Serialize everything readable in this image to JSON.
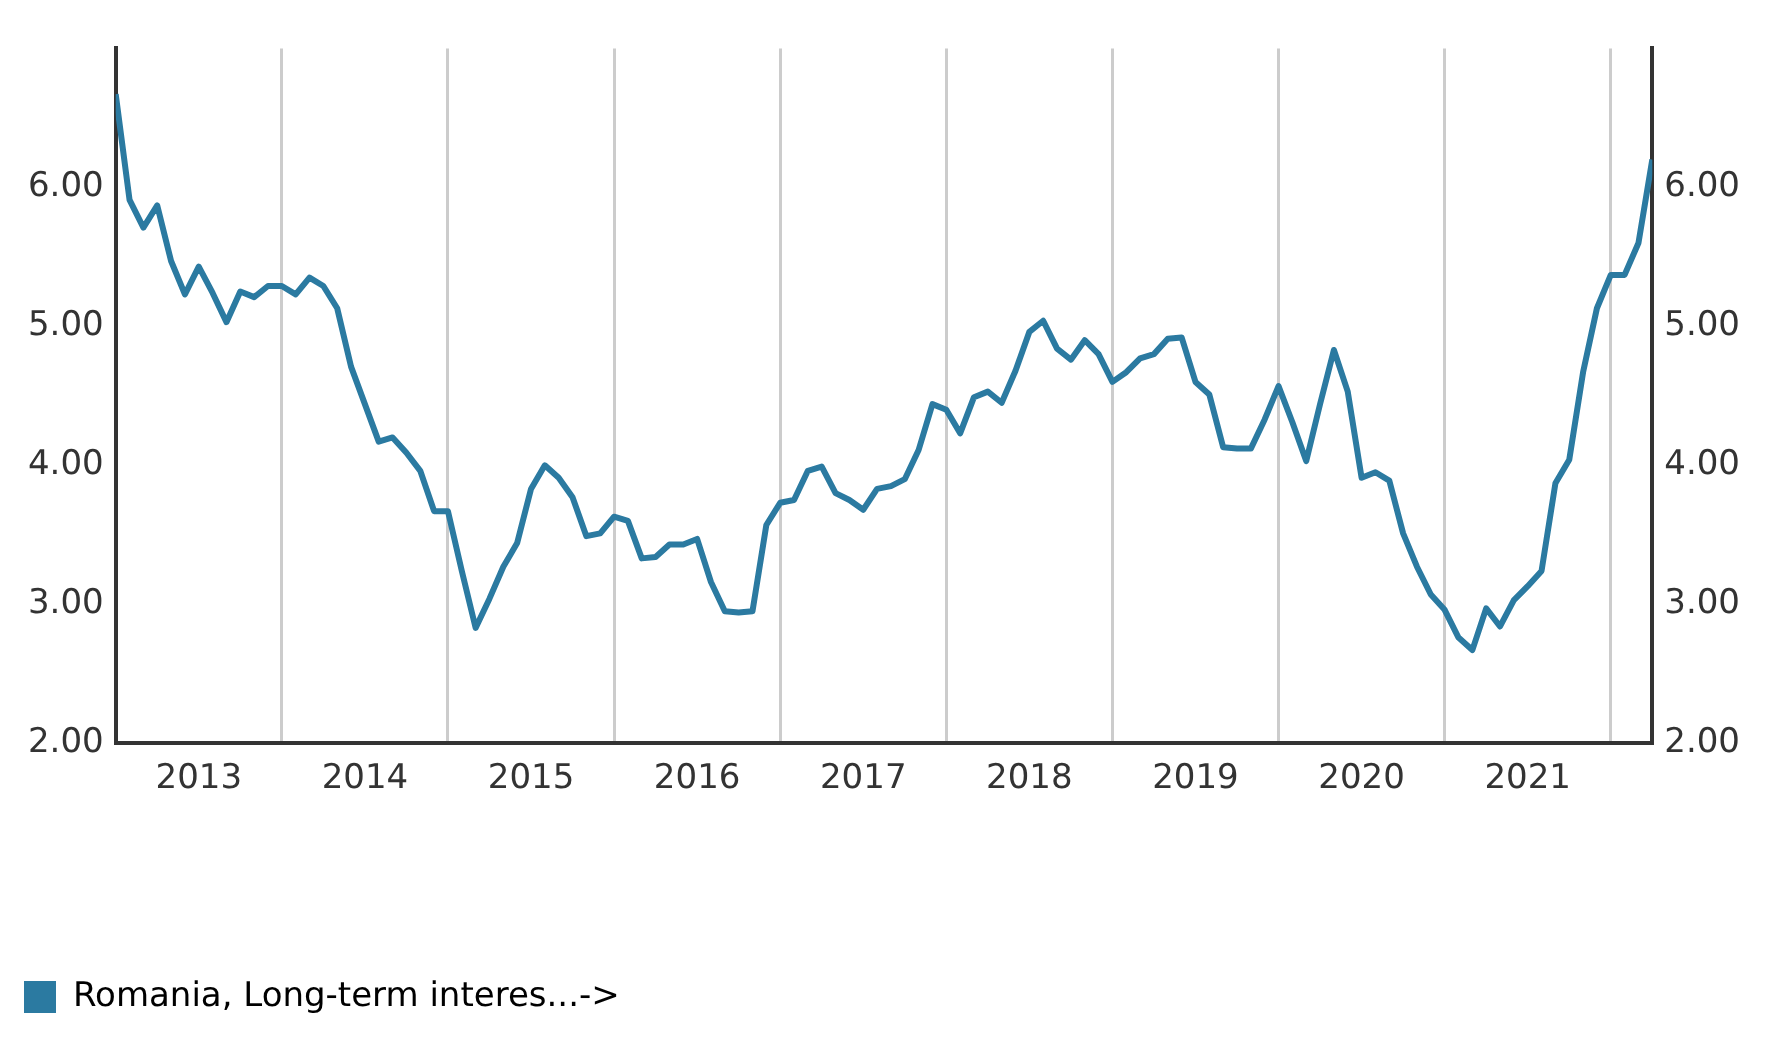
{
  "chart_data": {
    "type": "line",
    "x": [
      "2013-01",
      "2013-02",
      "2013-03",
      "2013-04",
      "2013-05",
      "2013-06",
      "2013-07",
      "2013-08",
      "2013-09",
      "2013-10",
      "2013-11",
      "2013-12",
      "2014-01",
      "2014-02",
      "2014-03",
      "2014-04",
      "2014-05",
      "2014-06",
      "2014-07",
      "2014-08",
      "2014-09",
      "2014-10",
      "2014-11",
      "2014-12",
      "2015-01",
      "2015-02",
      "2015-03",
      "2015-04",
      "2015-05",
      "2015-06",
      "2015-07",
      "2015-08",
      "2015-09",
      "2015-10",
      "2015-11",
      "2015-12",
      "2016-01",
      "2016-02",
      "2016-03",
      "2016-04",
      "2016-05",
      "2016-06",
      "2016-07",
      "2016-08",
      "2016-09",
      "2016-10",
      "2016-11",
      "2016-12",
      "2017-01",
      "2017-02",
      "2017-03",
      "2017-04",
      "2017-05",
      "2017-06",
      "2017-07",
      "2017-08",
      "2017-09",
      "2017-10",
      "2017-11",
      "2017-12",
      "2018-01",
      "2018-02",
      "2018-03",
      "2018-04",
      "2018-05",
      "2018-06",
      "2018-07",
      "2018-08",
      "2018-09",
      "2018-10",
      "2018-11",
      "2018-12",
      "2019-01",
      "2019-02",
      "2019-03",
      "2019-04",
      "2019-05",
      "2019-06",
      "2019-07",
      "2019-08",
      "2019-09",
      "2019-10",
      "2019-11",
      "2019-12",
      "2020-01",
      "2020-02",
      "2020-03",
      "2020-04",
      "2020-05",
      "2020-06",
      "2020-07",
      "2020-08",
      "2020-09",
      "2020-10",
      "2020-11",
      "2020-12",
      "2021-01",
      "2021-02",
      "2021-03",
      "2021-04",
      "2021-05",
      "2021-06",
      "2021-07",
      "2021-08",
      "2021-09",
      "2021-10",
      "2021-11",
      "2021-12",
      "2022-01",
      "2022-02",
      "2022-03",
      "2022-04"
    ],
    "series": [
      {
        "name": "Romania, Long-term interes...->",
        "color": "#2b7aa1",
        "values": [
          6.67,
          5.91,
          5.71,
          5.87,
          5.47,
          5.23,
          5.43,
          5.24,
          5.03,
          5.25,
          5.21,
          5.29,
          5.29,
          5.23,
          5.35,
          5.29,
          5.13,
          4.71,
          4.44,
          4.17,
          4.2,
          4.09,
          3.96,
          3.67,
          3.67,
          3.24,
          2.83,
          3.04,
          3.27,
          3.44,
          3.83,
          4.0,
          3.91,
          3.77,
          3.49,
          3.51,
          3.63,
          3.6,
          3.33,
          3.34,
          3.43,
          3.43,
          3.47,
          3.16,
          2.95,
          2.94,
          2.95,
          3.57,
          3.73,
          3.75,
          3.96,
          3.99,
          3.8,
          3.75,
          3.68,
          3.83,
          3.85,
          3.9,
          4.11,
          4.44,
          4.4,
          4.23,
          4.49,
          4.53,
          4.45,
          4.68,
          4.96,
          5.04,
          4.84,
          4.76,
          4.9,
          4.8,
          4.6,
          4.67,
          4.77,
          4.8,
          4.91,
          4.92,
          4.6,
          4.51,
          4.13,
          4.12,
          4.12,
          4.33,
          4.57,
          4.31,
          4.03,
          4.44,
          4.83,
          4.53,
          3.91,
          3.95,
          3.89,
          3.51,
          3.27,
          3.07,
          2.96,
          2.76,
          2.67,
          2.97,
          2.84,
          3.03,
          3.13,
          3.24,
          3.87,
          4.04,
          4.67,
          5.13,
          5.37,
          5.37,
          5.6,
          6.2
        ]
      }
    ],
    "xlim": [
      "2013-01",
      "2022-04"
    ],
    "xticks": [
      {
        "value": "2013-07",
        "label": "2013"
      },
      {
        "value": "2014",
        "label": null
      },
      {
        "value": "2014-07",
        "label": "2014"
      },
      {
        "value": "2015",
        "label": null
      },
      {
        "value": "2015-07",
        "label": "2015"
      },
      {
        "value": "2016",
        "label": null
      },
      {
        "value": "2016-07",
        "label": "2016"
      },
      {
        "value": "2017",
        "label": null
      },
      {
        "value": "2017-07",
        "label": "2017"
      },
      {
        "value": "2018",
        "label": null
      },
      {
        "value": "2018-07",
        "label": "2018"
      },
      {
        "value": "2019",
        "label": null
      },
      {
        "value": "2019-07",
        "label": "2019"
      },
      {
        "value": "2020",
        "label": null
      },
      {
        "value": "2020-07",
        "label": "2020"
      },
      {
        "value": "2021",
        "label": null
      },
      {
        "value": "2021-07",
        "label": "2021"
      },
      {
        "value": "2022",
        "label": null
      }
    ],
    "ylim": [
      2,
      7
    ],
    "yticks": [
      {
        "value": 2,
        "label": "2.00"
      },
      {
        "value": 3,
        "label": "3.00"
      },
      {
        "value": 4,
        "label": "4.00"
      },
      {
        "value": 5,
        "label": "5.00"
      },
      {
        "value": 6,
        "label": "6.00"
      }
    ],
    "y2lim": [
      2,
      7
    ],
    "y2ticks": [
      {
        "value": 2,
        "label": "2.00"
      },
      {
        "value": 3,
        "label": "3.00"
      },
      {
        "value": 4,
        "label": "4.00"
      },
      {
        "value": 5,
        "label": "5.00"
      },
      {
        "value": 6,
        "label": "6.00"
      }
    ],
    "grid": "x",
    "legend": "bottom left",
    "marker": "none",
    "line_style": "solid"
  }
}
